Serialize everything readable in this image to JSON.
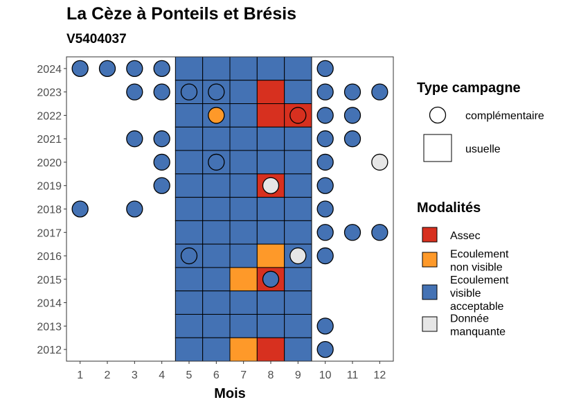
{
  "title": "La Cèze à Ponteils et Brésis",
  "subtitle": "V5404037",
  "chart_data": {
    "type": "heatmap",
    "xlabel": "Mois",
    "ylabel": "",
    "x": [
      1,
      2,
      3,
      4,
      5,
      6,
      7,
      8,
      9,
      10,
      11,
      12
    ],
    "y": [
      2012,
      2013,
      2014,
      2015,
      2016,
      2017,
      2018,
      2019,
      2020,
      2021,
      2022,
      2023,
      2024
    ],
    "grid": false,
    "colors": {
      "Assec": "#D7301F",
      "Ecoulement non visible": "#FE9929",
      "Ecoulement visible acceptable": "#4472B4",
      "Donnée manquante": "#E6E6E6"
    },
    "usuelle": [
      {
        "year": 2024,
        "values": {
          "5": "Ecoulement visible acceptable",
          "6": "Ecoulement visible acceptable",
          "7": "Ecoulement visible acceptable",
          "8": "Ecoulement visible acceptable",
          "9": "Ecoulement visible acceptable"
        }
      },
      {
        "year": 2023,
        "values": {
          "5": "Ecoulement visible acceptable",
          "6": "Ecoulement visible acceptable",
          "7": "Ecoulement visible acceptable",
          "8": "Assec",
          "9": "Ecoulement visible acceptable"
        }
      },
      {
        "year": 2022,
        "values": {
          "5": "Ecoulement visible acceptable",
          "6": "Ecoulement visible acceptable",
          "7": "Ecoulement visible acceptable",
          "8": "Assec",
          "9": "Assec"
        }
      },
      {
        "year": 2021,
        "values": {
          "5": "Ecoulement visible acceptable",
          "6": "Ecoulement visible acceptable",
          "7": "Ecoulement visible acceptable",
          "8": "Ecoulement visible acceptable",
          "9": "Ecoulement visible acceptable"
        }
      },
      {
        "year": 2020,
        "values": {
          "5": "Ecoulement visible acceptable",
          "6": "Ecoulement visible acceptable",
          "7": "Ecoulement visible acceptable",
          "8": "Ecoulement visible acceptable",
          "9": "Ecoulement visible acceptable"
        }
      },
      {
        "year": 2019,
        "values": {
          "5": "Ecoulement visible acceptable",
          "6": "Ecoulement visible acceptable",
          "7": "Ecoulement visible acceptable",
          "8": "Assec",
          "9": "Ecoulement visible acceptable"
        }
      },
      {
        "year": 2018,
        "values": {
          "5": "Ecoulement visible acceptable",
          "6": "Ecoulement visible acceptable",
          "7": "Ecoulement visible acceptable",
          "8": "Ecoulement visible acceptable",
          "9": "Ecoulement visible acceptable"
        }
      },
      {
        "year": 2017,
        "values": {
          "5": "Ecoulement visible acceptable",
          "6": "Ecoulement visible acceptable",
          "7": "Ecoulement visible acceptable",
          "8": "Ecoulement visible acceptable",
          "9": "Ecoulement visible acceptable"
        }
      },
      {
        "year": 2016,
        "values": {
          "5": "Ecoulement visible acceptable",
          "6": "Ecoulement visible acceptable",
          "7": "Ecoulement visible acceptable",
          "8": "Ecoulement non visible",
          "9": "Ecoulement visible acceptable"
        }
      },
      {
        "year": 2015,
        "values": {
          "5": "Ecoulement visible acceptable",
          "6": "Ecoulement visible acceptable",
          "7": "Ecoulement non visible",
          "8": "Assec",
          "9": "Ecoulement visible acceptable"
        }
      },
      {
        "year": 2014,
        "values": {
          "5": "Ecoulement visible acceptable",
          "6": "Ecoulement visible acceptable",
          "7": "Ecoulement visible acceptable",
          "8": "Ecoulement visible acceptable",
          "9": "Ecoulement visible acceptable"
        }
      },
      {
        "year": 2013,
        "values": {
          "5": "Ecoulement visible acceptable",
          "6": "Ecoulement visible acceptable",
          "7": "Ecoulement visible acceptable",
          "8": "Ecoulement visible acceptable",
          "9": "Ecoulement visible acceptable"
        }
      },
      {
        "year": 2012,
        "values": {
          "5": "Ecoulement visible acceptable",
          "6": "Ecoulement visible acceptable",
          "7": "Ecoulement non visible",
          "8": "Assec",
          "9": "Ecoulement visible acceptable"
        }
      }
    ],
    "complementaire": [
      {
        "year": 2024,
        "month": 1,
        "modalite": "Ecoulement visible acceptable"
      },
      {
        "year": 2024,
        "month": 2,
        "modalite": "Ecoulement visible acceptable"
      },
      {
        "year": 2024,
        "month": 3,
        "modalite": "Ecoulement visible acceptable"
      },
      {
        "year": 2024,
        "month": 4,
        "modalite": "Ecoulement visible acceptable"
      },
      {
        "year": 2024,
        "month": 10,
        "modalite": "Ecoulement visible acceptable"
      },
      {
        "year": 2023,
        "month": 3,
        "modalite": "Ecoulement visible acceptable"
      },
      {
        "year": 2023,
        "month": 4,
        "modalite": "Ecoulement visible acceptable"
      },
      {
        "year": 2023,
        "month": 5,
        "modalite": "Ecoulement visible acceptable"
      },
      {
        "year": 2023,
        "month": 6,
        "modalite": "Ecoulement visible acceptable"
      },
      {
        "year": 2023,
        "month": 10,
        "modalite": "Ecoulement visible acceptable"
      },
      {
        "year": 2023,
        "month": 11,
        "modalite": "Ecoulement visible acceptable"
      },
      {
        "year": 2023,
        "month": 12,
        "modalite": "Ecoulement visible acceptable"
      },
      {
        "year": 2022,
        "month": 6,
        "modalite": "Ecoulement non visible"
      },
      {
        "year": 2022,
        "month": 9,
        "modalite": "Assec"
      },
      {
        "year": 2022,
        "month": 10,
        "modalite": "Ecoulement visible acceptable"
      },
      {
        "year": 2022,
        "month": 11,
        "modalite": "Ecoulement visible acceptable"
      },
      {
        "year": 2021,
        "month": 3,
        "modalite": "Ecoulement visible acceptable"
      },
      {
        "year": 2021,
        "month": 4,
        "modalite": "Ecoulement visible acceptable"
      },
      {
        "year": 2021,
        "month": 10,
        "modalite": "Ecoulement visible acceptable"
      },
      {
        "year": 2021,
        "month": 11,
        "modalite": "Ecoulement visible acceptable"
      },
      {
        "year": 2020,
        "month": 4,
        "modalite": "Ecoulement visible acceptable"
      },
      {
        "year": 2020,
        "month": 6,
        "modalite": "Ecoulement visible acceptable"
      },
      {
        "year": 2020,
        "month": 10,
        "modalite": "Ecoulement visible acceptable"
      },
      {
        "year": 2020,
        "month": 12,
        "modalite": "Donnée manquante"
      },
      {
        "year": 2019,
        "month": 4,
        "modalite": "Ecoulement visible acceptable"
      },
      {
        "year": 2019,
        "month": 8,
        "modalite": "Donnée manquante"
      },
      {
        "year": 2019,
        "month": 10,
        "modalite": "Ecoulement visible acceptable"
      },
      {
        "year": 2018,
        "month": 1,
        "modalite": "Ecoulement visible acceptable"
      },
      {
        "year": 2018,
        "month": 3,
        "modalite": "Ecoulement visible acceptable"
      },
      {
        "year": 2018,
        "month": 10,
        "modalite": "Ecoulement visible acceptable"
      },
      {
        "year": 2017,
        "month": 10,
        "modalite": "Ecoulement visible acceptable"
      },
      {
        "year": 2017,
        "month": 11,
        "modalite": "Ecoulement visible acceptable"
      },
      {
        "year": 2017,
        "month": 12,
        "modalite": "Ecoulement visible acceptable"
      },
      {
        "year": 2016,
        "month": 5,
        "modalite": "Ecoulement visible acceptable"
      },
      {
        "year": 2016,
        "month": 9,
        "modalite": "Donnée manquante"
      },
      {
        "year": 2016,
        "month": 10,
        "modalite": "Ecoulement visible acceptable"
      },
      {
        "year": 2015,
        "month": 8,
        "modalite": "Ecoulement visible acceptable"
      },
      {
        "year": 2013,
        "month": 10,
        "modalite": "Ecoulement visible acceptable"
      },
      {
        "year": 2012,
        "month": 10,
        "modalite": "Ecoulement visible acceptable"
      }
    ],
    "legend": {
      "placement": "right",
      "type_title": "Type campagne",
      "type_items": [
        "complémentaire",
        "usuelle"
      ],
      "modalites_title": "Modalités",
      "modalites_items": [
        {
          "key": "Assec",
          "lines": [
            "Assec"
          ]
        },
        {
          "key": "Ecoulement non visible",
          "lines": [
            "Ecoulement",
            "non visible"
          ]
        },
        {
          "key": "Ecoulement visible acceptable",
          "lines": [
            "Ecoulement",
            "visible",
            "acceptable"
          ]
        },
        {
          "key": "Donnée manquante",
          "lines": [
            "Donnée",
            "manquante"
          ]
        }
      ]
    }
  }
}
